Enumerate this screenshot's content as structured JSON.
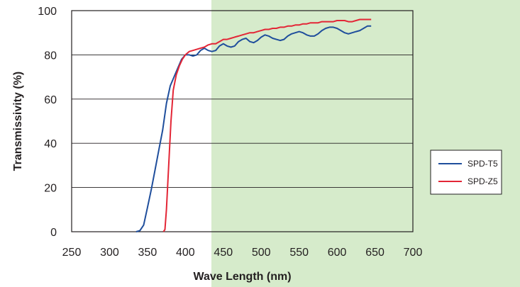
{
  "chart_data": {
    "type": "line",
    "title": "",
    "xlabel": "Wave Length (nm)",
    "ylabel": "Transmissivity (%)",
    "xlim": [
      250,
      700
    ],
    "ylim": [
      0,
      100
    ],
    "x_ticks": [
      "250",
      "300",
      "350",
      "400",
      "450",
      "500",
      "550",
      "600",
      "650",
      "700"
    ],
    "y_ticks": [
      "0",
      "20",
      "40",
      "60",
      "80",
      "100"
    ],
    "grid": "horizontal",
    "legend": "right",
    "series": [
      {
        "name": "SPD-T5",
        "color": "#1f4e9c",
        "points": [
          [
            335,
            0
          ],
          [
            340,
            0.5
          ],
          [
            345,
            3
          ],
          [
            350,
            11
          ],
          [
            355,
            19
          ],
          [
            360,
            28
          ],
          [
            365,
            37
          ],
          [
            370,
            46
          ],
          [
            375,
            58
          ],
          [
            380,
            66
          ],
          [
            385,
            70
          ],
          [
            390,
            74
          ],
          [
            395,
            78
          ],
          [
            400,
            80
          ],
          [
            405,
            80
          ],
          [
            410,
            79.5
          ],
          [
            415,
            80
          ],
          [
            420,
            82
          ],
          [
            425,
            83
          ],
          [
            430,
            82
          ],
          [
            435,
            81.5
          ],
          [
            440,
            82
          ],
          [
            445,
            84
          ],
          [
            450,
            85
          ],
          [
            455,
            84
          ],
          [
            460,
            83.5
          ],
          [
            465,
            84
          ],
          [
            470,
            86
          ],
          [
            475,
            87
          ],
          [
            480,
            87.5
          ],
          [
            485,
            86
          ],
          [
            490,
            85.5
          ],
          [
            495,
            86.5
          ],
          [
            500,
            88
          ],
          [
            505,
            89
          ],
          [
            510,
            88.5
          ],
          [
            515,
            87.5
          ],
          [
            520,
            87
          ],
          [
            525,
            86.5
          ],
          [
            530,
            87
          ],
          [
            535,
            88.5
          ],
          [
            540,
            89.5
          ],
          [
            545,
            90
          ],
          [
            550,
            90.5
          ],
          [
            555,
            90
          ],
          [
            560,
            89
          ],
          [
            565,
            88.5
          ],
          [
            570,
            88.5
          ],
          [
            575,
            89.5
          ],
          [
            580,
            91
          ],
          [
            585,
            92
          ],
          [
            590,
            92.5
          ],
          [
            595,
            92.5
          ],
          [
            600,
            92
          ],
          [
            605,
            91
          ],
          [
            610,
            90
          ],
          [
            615,
            89.5
          ],
          [
            620,
            90
          ],
          [
            625,
            90.5
          ],
          [
            630,
            91
          ],
          [
            635,
            92
          ],
          [
            640,
            93
          ],
          [
            645,
            93
          ]
        ]
      },
      {
        "name": "SPD-Z5",
        "color": "#e32636",
        "points": [
          [
            371,
            0
          ],
          [
            373,
            1
          ],
          [
            375,
            10
          ],
          [
            378,
            30
          ],
          [
            381,
            50
          ],
          [
            384,
            64
          ],
          [
            388,
            71
          ],
          [
            392,
            75
          ],
          [
            396,
            78
          ],
          [
            400,
            80
          ],
          [
            405,
            81.5
          ],
          [
            410,
            82
          ],
          [
            415,
            82.5
          ],
          [
            420,
            83
          ],
          [
            425,
            83.5
          ],
          [
            430,
            84.5
          ],
          [
            435,
            85
          ],
          [
            440,
            85
          ],
          [
            445,
            86
          ],
          [
            450,
            87
          ],
          [
            455,
            87
          ],
          [
            460,
            87.5
          ],
          [
            465,
            88
          ],
          [
            470,
            88.5
          ],
          [
            475,
            89
          ],
          [
            480,
            89.5
          ],
          [
            485,
            90
          ],
          [
            490,
            90
          ],
          [
            495,
            90.5
          ],
          [
            500,
            91
          ],
          [
            505,
            91.5
          ],
          [
            510,
            91.5
          ],
          [
            515,
            92
          ],
          [
            520,
            92
          ],
          [
            525,
            92.5
          ],
          [
            530,
            92.5
          ],
          [
            535,
            93
          ],
          [
            540,
            93
          ],
          [
            545,
            93.5
          ],
          [
            550,
            93.5
          ],
          [
            555,
            94
          ],
          [
            560,
            94
          ],
          [
            565,
            94.5
          ],
          [
            570,
            94.5
          ],
          [
            575,
            94.5
          ],
          [
            580,
            95
          ],
          [
            585,
            95
          ],
          [
            590,
            95
          ],
          [
            595,
            95
          ],
          [
            600,
            95.5
          ],
          [
            605,
            95.5
          ],
          [
            610,
            95.5
          ],
          [
            615,
            95
          ],
          [
            620,
            95
          ],
          [
            625,
            95.5
          ],
          [
            630,
            96
          ],
          [
            635,
            96
          ],
          [
            640,
            96
          ],
          [
            645,
            96
          ]
        ]
      }
    ]
  }
}
